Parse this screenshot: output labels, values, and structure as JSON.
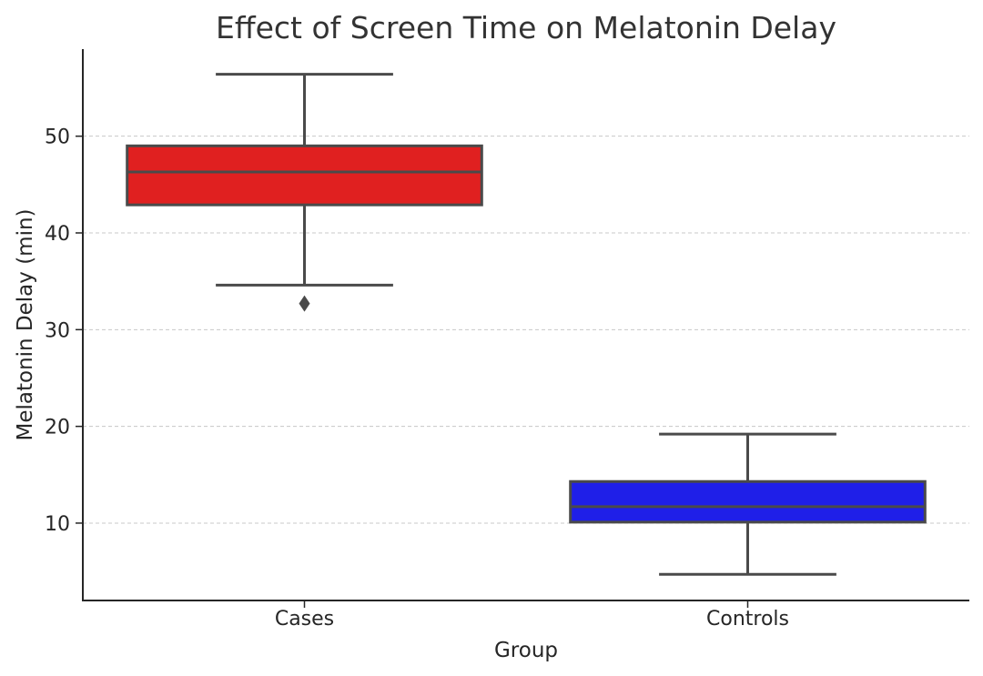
{
  "chart_data": {
    "type": "box",
    "title": "Effect of Screen Time on Melatonin Delay",
    "xlabel": "Group",
    "ylabel": "Melatonin Delay (min)",
    "ylim": [
      2,
      59
    ],
    "yticks": [
      10,
      20,
      30,
      40,
      50
    ],
    "grid": {
      "y": true,
      "x": false
    },
    "categories": [
      "Cases",
      "Controls"
    ],
    "boxes": [
      {
        "name": "Cases",
        "color": "#e02020",
        "whisker_low": 34.6,
        "q1": 42.9,
        "median": 46.3,
        "q3": 49.0,
        "whisker_high": 56.4,
        "outliers": [
          32.7
        ]
      },
      {
        "name": "Controls",
        "color": "#1f1fe8",
        "whisker_low": 4.7,
        "q1": 10.1,
        "median": 11.7,
        "q3": 14.3,
        "whisker_high": 19.2,
        "outliers": []
      }
    ]
  }
}
